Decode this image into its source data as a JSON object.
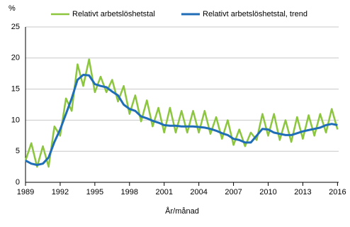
{
  "chart_data": {
    "type": "line",
    "y_label": "%",
    "x_label": "År/månad",
    "x": [
      1989,
      1989.5,
      1990,
      1990.5,
      1991,
      1991.5,
      1992,
      1992.5,
      1993,
      1993.5,
      1994,
      1994.5,
      1995,
      1995.5,
      1996,
      1996.5,
      1997,
      1997.5,
      1998,
      1998.5,
      1999,
      1999.5,
      2000,
      2000.5,
      2001,
      2001.5,
      2002,
      2002.5,
      2003,
      2003.5,
      2004,
      2004.5,
      2005,
      2005.5,
      2006,
      2006.5,
      2007,
      2007.5,
      2008,
      2008.5,
      2009,
      2009.5,
      2010,
      2010.5,
      2011,
      2011.5,
      2012,
      2012.5,
      2013,
      2013.5,
      2014,
      2014.5,
      2015,
      2015.5,
      2016
    ],
    "series": [
      {
        "name": "Relativt arbetslöshetstal",
        "color": "#8cc63f",
        "width": 2.5,
        "values": [
          3.5,
          6.3,
          2.5,
          5.8,
          2.5,
          9.0,
          7.5,
          13.5,
          11.5,
          19.0,
          15.5,
          19.8,
          14.5,
          17.0,
          14.5,
          16.5,
          13.0,
          15.5,
          11.0,
          14.0,
          9.8,
          13.2,
          9.0,
          12.0,
          8.0,
          12.0,
          8.0,
          11.5,
          8.0,
          11.5,
          8.0,
          11.5,
          7.8,
          10.5,
          7.0,
          10.0,
          6.0,
          8.5,
          5.8,
          8.0,
          6.8,
          11.0,
          7.5,
          11.0,
          6.8,
          10.0,
          6.5,
          10.5,
          7.0,
          10.8,
          7.5,
          11.0,
          8.0,
          11.8,
          8.5
        ]
      },
      {
        "name": "Relativt arbetslöshetstal, trend",
        "color": "#1f6db6",
        "width": 3,
        "values": [
          3.5,
          3.0,
          2.8,
          3.0,
          4.0,
          6.5,
          8.5,
          11.0,
          13.5,
          16.5,
          17.3,
          17.2,
          15.8,
          15.5,
          15.3,
          14.6,
          14.0,
          12.5,
          11.8,
          11.5,
          10.6,
          10.3,
          9.9,
          9.6,
          9.2,
          9.1,
          9.1,
          9.0,
          9.0,
          9.0,
          8.9,
          8.8,
          8.6,
          8.3,
          7.9,
          7.6,
          7.0,
          6.8,
          6.4,
          6.4,
          7.5,
          8.6,
          8.5,
          8.0,
          7.8,
          7.6,
          7.6,
          7.9,
          8.2,
          8.4,
          8.6,
          8.8,
          9.2,
          9.4,
          9.2
        ]
      }
    ],
    "xlim": [
      1989,
      2016.1
    ],
    "xticks": [
      1989,
      1992,
      1995,
      1998,
      2001,
      2004,
      2007,
      2010,
      2013,
      2016
    ],
    "ylim": [
      0,
      25
    ],
    "yticks": [
      0,
      5,
      10,
      15,
      20,
      25
    ],
    "grid": true
  }
}
